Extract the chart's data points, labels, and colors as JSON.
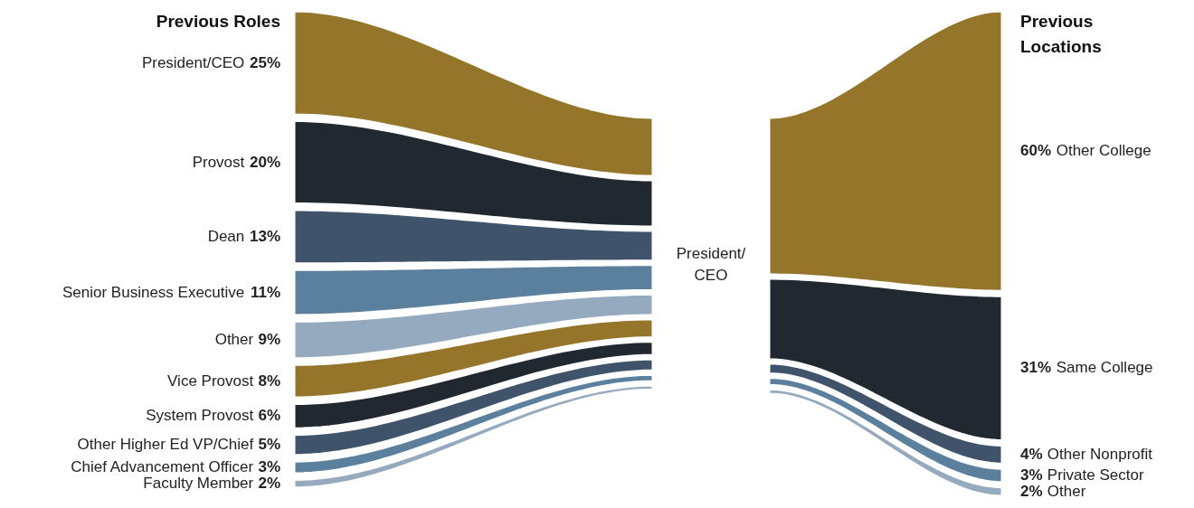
{
  "chart_data": [
    {
      "type": "other",
      "title": "Previous Roles",
      "categories": [
        "President/CEO",
        "Provost",
        "Dean",
        "Senior Business Executive",
        "Other",
        "Vice Provost",
        "System Provost",
        "Other Higher Ed VP/Chief",
        "Chief Advancement Officer",
        "Faculty Member"
      ],
      "values": [
        25,
        20,
        13,
        11,
        9,
        8,
        6,
        5,
        3,
        2
      ],
      "value_labels": [
        "25%",
        "20%",
        "13%",
        "11%",
        "9%",
        "8%",
        "6%",
        "5%",
        "3%",
        "2%"
      ],
      "colors": [
        "#94752a",
        "#222830",
        "#3f536b",
        "#5b809e",
        "#95a9bf",
        "#94752a",
        "#222830",
        "#3f536b",
        "#5b809e",
        "#95a9bf"
      ],
      "annotations": [
        "President/CEO"
      ]
    },
    {
      "type": "other",
      "title": "Previous Locations",
      "categories": [
        "Other College",
        "Same College",
        "Other Nonprofit",
        "Private Sector",
        "Other"
      ],
      "values": [
        60,
        31,
        4,
        3,
        2
      ],
      "value_labels": [
        "60%",
        "31%",
        "4%",
        "3%",
        "2%"
      ],
      "colors": [
        "#94752a",
        "#222830",
        "#3f536b",
        "#5b809e",
        "#95a9bf"
      ]
    }
  ]
}
